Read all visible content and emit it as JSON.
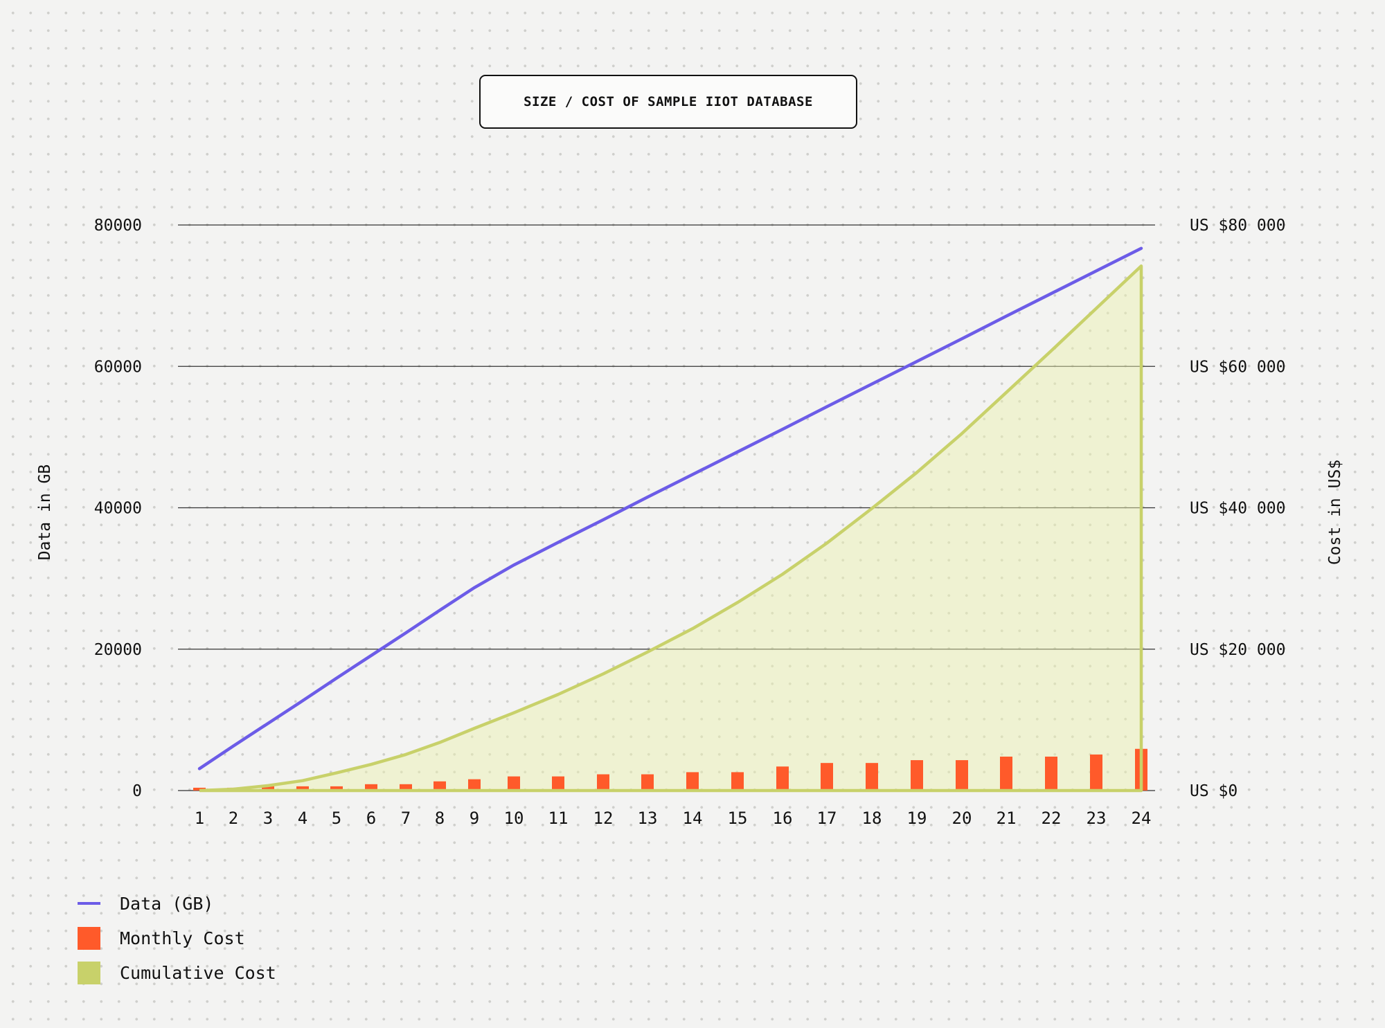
{
  "chart_data": {
    "type": "bar",
    "title": "SIZE / COST OF SAMPLE IIOT DATABASE",
    "xlabel": "",
    "ylabel": "Data in GB",
    "y2label": "Cost in US$",
    "categories": [
      "1",
      "2",
      "3",
      "4",
      "5",
      "6",
      "7",
      "8",
      "9",
      "10",
      "11",
      "12",
      "13",
      "14",
      "15",
      "16",
      "17",
      "18",
      "19",
      "20",
      "21",
      "22",
      "23",
      "24"
    ],
    "ylim": [
      0,
      80000
    ],
    "y2lim": [
      0,
      80000
    ],
    "yticks": [
      "0",
      "20000",
      "40000",
      "60000",
      "80000"
    ],
    "y2ticks": [
      "US $0",
      "US $20 000",
      "US $40 000",
      "US $60 000",
      "US $80 000"
    ],
    "grid": true,
    "legend_position": "bottom-left",
    "series": [
      {
        "name": "Data (GB)",
        "type": "line",
        "axis": "left",
        "color": "#6c5ce7",
        "values": [
          3100,
          6300,
          9500,
          12700,
          15900,
          19100,
          22300,
          25500,
          28700,
          31900,
          35100,
          38300,
          41500,
          44700,
          47900,
          51100,
          54300,
          57500,
          60700,
          63900,
          67100,
          70300,
          73500,
          76700
        ]
      },
      {
        "name": "Monthly Cost",
        "type": "bar",
        "axis": "right",
        "color": "#ff5a2a",
        "values": [
          400,
          400,
          600,
          600,
          600,
          900,
          900,
          1300,
          1600,
          2000,
          2000,
          2300,
          2300,
          2600,
          2600,
          3400,
          3900,
          3900,
          4300,
          4300,
          4800,
          4800,
          5100,
          5900
        ]
      },
      {
        "name": "Cumulative Cost",
        "type": "area",
        "axis": "right",
        "color": "#c8d16a",
        "values": [
          0,
          200,
          700,
          1400,
          2500,
          3700,
          5100,
          6800,
          8800,
          11000,
          13600,
          16500,
          19600,
          22900,
          26600,
          30600,
          35000,
          39900,
          45000,
          50500,
          56300,
          62200,
          68200,
          74200
        ]
      }
    ]
  },
  "legend": [
    {
      "label": "Data (GB)",
      "kind": "line",
      "color": "#6c5ce7"
    },
    {
      "label": "Monthly Cost",
      "kind": "box",
      "color": "#ff5a2a"
    },
    {
      "label": "Cumulative Cost",
      "kind": "box",
      "color": "#c8d16a"
    }
  ]
}
